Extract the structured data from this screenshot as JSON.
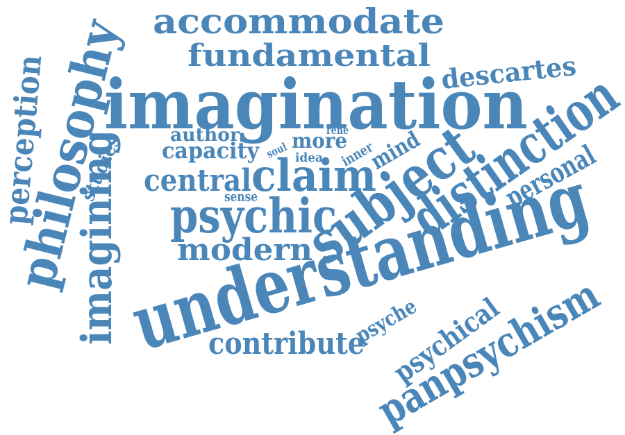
{
  "colors": {
    "word": "#4a86b8",
    "background": "#ffffff"
  },
  "words": {
    "imagination": "imagination",
    "understanding": "understanding",
    "subject": "subject",
    "distinction": "distinction",
    "philosophy": "philosophy",
    "accommodate": "accommodate",
    "fundamental": "fundamental",
    "imagining": "imagining",
    "psychic": "psychic",
    "claim": "claim",
    "panpsychism": "panpsychism",
    "perception": "perception",
    "modern": "modern",
    "contribute": "contribute",
    "descartes": "descartes",
    "central": "central",
    "capacity": "capacity",
    "personal": "personal",
    "psychical": "psychical",
    "studies": "studies",
    "author": "author",
    "more": "more",
    "mind": "mind",
    "psyche": "psyche",
    "inner": "inner",
    "sense": "sense",
    "idea": "idea",
    "soul": "soul",
    "rene": "rené"
  }
}
